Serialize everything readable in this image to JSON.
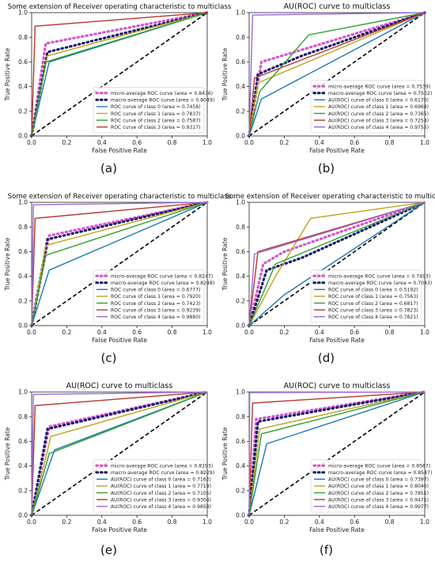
{
  "colors": {
    "micro": "#d656cc",
    "macro": "#1a1a6e",
    "series": [
      "#1f77b4",
      "#bfa21c",
      "#2ca02c",
      "#b5382d",
      "#9b68d8"
    ]
  },
  "chart_data": [
    {
      "type": "line",
      "panel_label": "(a)",
      "title": "Some extension of Receiver operating characteristic to multiclass",
      "xlabel": "False Positive Rate",
      "ylabel": "True Positive Rate",
      "xlim": [
        0,
        1
      ],
      "ylim": [
        0,
        1
      ],
      "xticks": [
        0.0,
        0.2,
        0.4,
        0.6,
        0.8,
        1.0
      ],
      "yticks": [
        0.0,
        0.2,
        0.4,
        0.6,
        0.8,
        1.0
      ],
      "legend_position": "lower-right",
      "series": [
        {
          "label": "micro-average ROC curve (area = 0.8436)",
          "points": [
            [
              0,
              0
            ],
            [
              0.08,
              0.75
            ],
            [
              1,
              1
            ]
          ],
          "style": "micro"
        },
        {
          "label": "macro-average ROC curve (area = 0.8049)",
          "points": [
            [
              0,
              0
            ],
            [
              0.09,
              0.68
            ],
            [
              1,
              1
            ]
          ],
          "style": "macro"
        },
        {
          "label": "ROC curve of class 0 (area = 0.7458)",
          "points": [
            [
              0,
              0
            ],
            [
              0.1,
              0.6
            ],
            [
              1,
              1
            ]
          ],
          "style": "c0"
        },
        {
          "label": "ROC curve of class 1 (area = 0.7837)",
          "points": [
            [
              0,
              0
            ],
            [
              0.09,
              0.65
            ],
            [
              1,
              1
            ]
          ],
          "style": "c1"
        },
        {
          "label": "ROC curve of class 2 (area = 0.7587)",
          "points": [
            [
              0,
              0
            ],
            [
              0.08,
              0.6
            ],
            [
              1,
              1
            ]
          ],
          "style": "c2"
        },
        {
          "label": "ROC curve of class 3 (area = 0.9317)",
          "points": [
            [
              0,
              0
            ],
            [
              0.02,
              0.89
            ],
            [
              1,
              1
            ]
          ],
          "style": "c3"
        }
      ]
    },
    {
      "type": "line",
      "panel_label": "(b)",
      "title": "AU(ROC) curve to multiclass",
      "xlabel": "False Positive Rate",
      "ylabel": "True Positive Rate",
      "xlim": [
        0,
        1
      ],
      "ylim": [
        0,
        1
      ],
      "xticks": [
        0.0,
        0.2,
        0.4,
        0.6,
        0.8,
        1.0
      ],
      "yticks": [
        0.0,
        0.2,
        0.4,
        0.6,
        0.8,
        1.0
      ],
      "legend_position": "lower-right",
      "series": [
        {
          "label": "micro-average ROC curve (area = 0.7539)",
          "points": [
            [
              0,
              0
            ],
            [
              0.07,
              0.6
            ],
            [
              0.35,
              0.72
            ],
            [
              1,
              1
            ]
          ],
          "style": "micro"
        },
        {
          "label": "macro-average ROC curve (area = 0.7502)",
          "points": [
            [
              0,
              0
            ],
            [
              0.05,
              0.5
            ],
            [
              0.3,
              0.65
            ],
            [
              1,
              1
            ]
          ],
          "style": "macro"
        },
        {
          "label": "AU(ROC) curve of class 0 (area = 0.6170)",
          "points": [
            [
              0,
              0
            ],
            [
              0.07,
              0.3
            ],
            [
              1,
              1
            ]
          ],
          "style": "c0"
        },
        {
          "label": "AU(ROC) curve of class 1 (area = 0.6968)",
          "points": [
            [
              0,
              0
            ],
            [
              0.05,
              0.43
            ],
            [
              1,
              1
            ]
          ],
          "style": "c1"
        },
        {
          "label": "AU(ROC) curve of class 2 (area = 0.7365)",
          "points": [
            [
              0,
              0
            ],
            [
              0.06,
              0.36
            ],
            [
              0.34,
              0.82
            ],
            [
              1,
              1
            ]
          ],
          "style": "c2"
        },
        {
          "label": "AU(ROC) curve of class 3 (area = 0.7254)",
          "points": [
            [
              0,
              0
            ],
            [
              0.03,
              0.47
            ],
            [
              1,
              1
            ]
          ],
          "style": "c3"
        },
        {
          "label": "AU(ROC) curve of class 4 (area = 0.9755)",
          "points": [
            [
              0,
              0
            ],
            [
              0.02,
              0.98
            ],
            [
              1,
              1
            ]
          ],
          "style": "c4"
        }
      ]
    },
    {
      "type": "line",
      "panel_label": "(c)",
      "title": "Some extension of Receiver operating characteristic to multiclass",
      "xlabel": "False Positive Rate",
      "ylabel": "True Positive Rate",
      "xlim": [
        0,
        1
      ],
      "ylim": [
        0,
        1
      ],
      "xticks": [
        0.0,
        0.2,
        0.4,
        0.6,
        0.8,
        1.0
      ],
      "yticks": [
        0.0,
        0.2,
        0.4,
        0.6,
        0.8,
        1.0
      ],
      "legend_position": "lower-right",
      "series": [
        {
          "label": "micro-average ROC curve (area = 0.8247)",
          "points": [
            [
              0,
              0
            ],
            [
              0.1,
              0.73
            ],
            [
              1,
              1
            ]
          ],
          "style": "micro"
        },
        {
          "label": "macro-average ROC curve (area = 0.8248)",
          "points": [
            [
              0,
              0
            ],
            [
              0.09,
              0.7
            ],
            [
              1,
              1
            ]
          ],
          "style": "macro"
        },
        {
          "label": "ROC curve of class 0 (area = 0.6777)",
          "points": [
            [
              0,
              0
            ],
            [
              0.1,
              0.45
            ],
            [
              1,
              1
            ]
          ],
          "style": "c0"
        },
        {
          "label": "ROC curve of class 1 (area = 0.7920)",
          "points": [
            [
              0,
              0
            ],
            [
              0.08,
              0.65
            ],
            [
              1,
              1
            ]
          ],
          "style": "c1"
        },
        {
          "label": "ROC curve of class 2 (area = 0.7423)",
          "points": [
            [
              0,
              0
            ],
            [
              0.08,
              0.57
            ],
            [
              1,
              1
            ]
          ],
          "style": "c2"
        },
        {
          "label": "ROC curve of class 3 (area = 0.9239)",
          "points": [
            [
              0,
              0
            ],
            [
              0.02,
              0.87
            ],
            [
              1,
              1
            ]
          ],
          "style": "c3"
        },
        {
          "label": "ROC curve of class 4 (area = 0.9880)",
          "points": [
            [
              0,
              0
            ],
            [
              0.01,
              0.98
            ],
            [
              1,
              1
            ]
          ],
          "style": "c4"
        }
      ]
    },
    {
      "type": "line",
      "panel_label": "(d)",
      "title": "Some extension of Receiver operating characteristic to multiclass",
      "xlabel": "False Positive Rate",
      "ylabel": "True Positive Rate",
      "xlim": [
        0,
        1
      ],
      "ylim": [
        0,
        1
      ],
      "xticks": [
        0.0,
        0.2,
        0.4,
        0.6,
        0.8,
        1.0
      ],
      "yticks": [
        0.0,
        0.2,
        0.4,
        0.6,
        0.8,
        1.0
      ],
      "legend_position": "lower-right",
      "series": [
        {
          "label": "micro-average ROC curve (area = 0.7493)",
          "points": [
            [
              0,
              0
            ],
            [
              0.08,
              0.5
            ],
            [
              0.2,
              0.6
            ],
            [
              1,
              1
            ]
          ],
          "style": "micro"
        },
        {
          "label": "macro-average ROC curve (area = 0.7043)",
          "points": [
            [
              0,
              0
            ],
            [
              0.1,
              0.45
            ],
            [
              0.3,
              0.55
            ],
            [
              1,
              1
            ]
          ],
          "style": "macro"
        },
        {
          "label": "ROC curve of class 0 (area = 0.5192)",
          "points": [
            [
              0,
              0
            ],
            [
              0.2,
              0.25
            ],
            [
              1,
              1
            ]
          ],
          "style": "c0"
        },
        {
          "label": "ROC curve of class 1 (area = 0.7563)",
          "points": [
            [
              0,
              0
            ],
            [
              0.15,
              0.4
            ],
            [
              0.35,
              0.87
            ],
            [
              1,
              1
            ]
          ],
          "style": "c1"
        },
        {
          "label": "ROC curve of class 2 (area = 0.6817)",
          "points": [
            [
              0,
              0
            ],
            [
              0.15,
              0.5
            ],
            [
              1,
              1
            ]
          ],
          "style": "c2"
        },
        {
          "label": "ROC curve of class 3 (area = 0.7823)",
          "points": [
            [
              0,
              0
            ],
            [
              0.05,
              0.6
            ],
            [
              1,
              1
            ]
          ],
          "style": "c3"
        },
        {
          "label": "ROC curve of class 4 (area = 0.7821)",
          "points": [
            [
              0,
              0
            ],
            [
              0.03,
              0.58
            ],
            [
              1,
              1
            ]
          ],
          "style": "c4"
        }
      ]
    },
    {
      "type": "line",
      "panel_label": "(e)",
      "title": "AU(ROC) curve to multiclass",
      "xlabel": "False Positive Rate",
      "ylabel": "True Positive Rate",
      "xlim": [
        0,
        1
      ],
      "ylim": [
        0,
        1
      ],
      "xticks": [
        0.0,
        0.2,
        0.4,
        0.6,
        0.8,
        1.0
      ],
      "yticks": [
        0.0,
        0.2,
        0.4,
        0.6,
        0.8,
        1.0
      ],
      "legend_position": "lower-right",
      "series": [
        {
          "label": "micro-average ROC curve (area = 0.8193)",
          "points": [
            [
              0,
              0
            ],
            [
              0.1,
              0.72
            ],
            [
              1,
              1
            ]
          ],
          "style": "micro"
        },
        {
          "label": "macro-average ROC curve (area = 0.8229)",
          "points": [
            [
              0,
              0
            ],
            [
              0.09,
              0.7
            ],
            [
              1,
              1
            ]
          ],
          "style": "macro"
        },
        {
          "label": "AU(ROC) curve of class 0 (area = 0.7162)",
          "points": [
            [
              0,
              0
            ],
            [
              0.13,
              0.53
            ],
            [
              1,
              1
            ]
          ],
          "style": "c0"
        },
        {
          "label": "AU(ROC) curve of class 1 (area = 0.7719)",
          "points": [
            [
              0,
              0
            ],
            [
              0.11,
              0.64
            ],
            [
              1,
              1
            ]
          ],
          "style": "c1"
        },
        {
          "label": "AU(ROC) curve of class 2 (area = 0.7105)",
          "points": [
            [
              0,
              0
            ],
            [
              0.1,
              0.5
            ],
            [
              1,
              1
            ]
          ],
          "style": "c2"
        },
        {
          "label": "AU(ROC) curve of class 3 (area = 0.9304)",
          "points": [
            [
              0,
              0
            ],
            [
              0.02,
              0.89
            ],
            [
              1,
              1
            ]
          ],
          "style": "c3"
        },
        {
          "label": "AU(ROC) curve of class 4 (area = 0.9858)",
          "points": [
            [
              0,
              0
            ],
            [
              0.01,
              0.98
            ],
            [
              1,
              1
            ]
          ],
          "style": "c4"
        }
      ]
    },
    {
      "type": "line",
      "panel_label": "(f)",
      "title": "AU(ROC) curve to multiclass",
      "xlabel": "False Positive Rate",
      "ylabel": "True Positive Rate",
      "xlim": [
        0,
        1
      ],
      "ylim": [
        0,
        1
      ],
      "xticks": [
        0.0,
        0.2,
        0.4,
        0.6,
        0.8,
        1.0
      ],
      "yticks": [
        0.0,
        0.2,
        0.4,
        0.6,
        0.8,
        1.0
      ],
      "legend_position": "lower-right",
      "series": [
        {
          "label": "micro-average ROC curve (area = 0.8567)",
          "points": [
            [
              0,
              0
            ],
            [
              0.04,
              0.78
            ],
            [
              1,
              1
            ]
          ],
          "style": "micro"
        },
        {
          "label": "macro-average ROC curve (area = 0.8547)",
          "points": [
            [
              0,
              0
            ],
            [
              0.05,
              0.76
            ],
            [
              1,
              1
            ]
          ],
          "style": "macro"
        },
        {
          "label": "AU(ROC) curve of class 0 (area = 0.7397)",
          "points": [
            [
              0,
              0
            ],
            [
              0.1,
              0.58
            ],
            [
              1,
              1
            ]
          ],
          "style": "c0"
        },
        {
          "label": "AU(ROC) curve of class 1 (area = 0.8040)",
          "points": [
            [
              0,
              0
            ],
            [
              0.06,
              0.7
            ],
            [
              1,
              1
            ]
          ],
          "style": "c1"
        },
        {
          "label": "AU(ROC) curve of class 2 (area = 0.7851)",
          "points": [
            [
              0,
              0
            ],
            [
              0.07,
              0.66
            ],
            [
              1,
              1
            ]
          ],
          "style": "c2"
        },
        {
          "label": "AU(ROC) curve of class 3 (area = 0.9471)",
          "points": [
            [
              0,
              0
            ],
            [
              0.02,
              0.91
            ],
            [
              1,
              1
            ]
          ],
          "style": "c3"
        },
        {
          "label": "AU(ROC) curve of class 4 (area = 0.9977)",
          "points": [
            [
              0,
              0
            ],
            [
              0.003,
              0.995
            ],
            [
              1,
              1
            ]
          ],
          "style": "c4"
        }
      ]
    }
  ]
}
